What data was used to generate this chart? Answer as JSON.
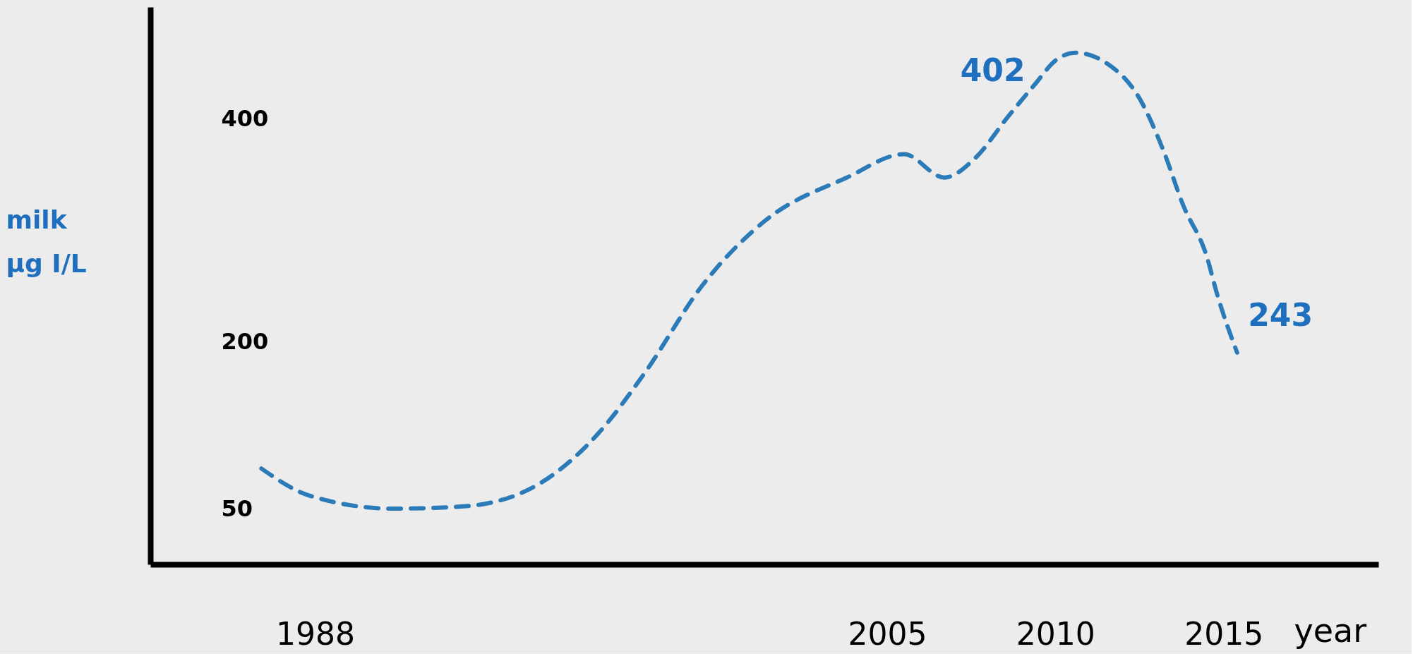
{
  "chart_data": {
    "type": "line",
    "xlabel": "year",
    "ylabel": "milk\nμg I/L",
    "x": [
      1986.4,
      1987.8,
      1990.3,
      1992.4,
      1994.7,
      1996.4,
      1997.8,
      1999.5,
      2001.4,
      2003.8,
      2005.5,
      2006.7,
      2007.6,
      2008.6,
      2009.4,
      2010.0,
      2010.6,
      2011.5,
      2012.5,
      2013.2,
      2013.8,
      2014.5,
      2014.8,
      2015.4
    ],
    "series": [
      {
        "color": "#2b7bb9",
        "values": [
          86,
          62,
          50,
          52,
          73,
          117,
          172,
          250,
          309,
          347,
          368,
          347,
          364,
          402,
          431,
          452,
          459,
          450,
          418,
          372,
          322,
          276,
          243,
          190
        ]
      }
    ],
    "xlim": [
      1983.1,
      2019.6
    ],
    "xticks": [
      1988,
      2005,
      2010,
      2015
    ],
    "ylim": [
      0,
      500
    ],
    "yticks": [
      50,
      200,
      400
    ],
    "line_style": "dashed",
    "grid": false,
    "annotations": [
      {
        "text": "402",
        "x": 2008.6,
        "y": 402
      },
      {
        "text": "243",
        "x": 2014.8,
        "y": 243
      }
    ]
  }
}
